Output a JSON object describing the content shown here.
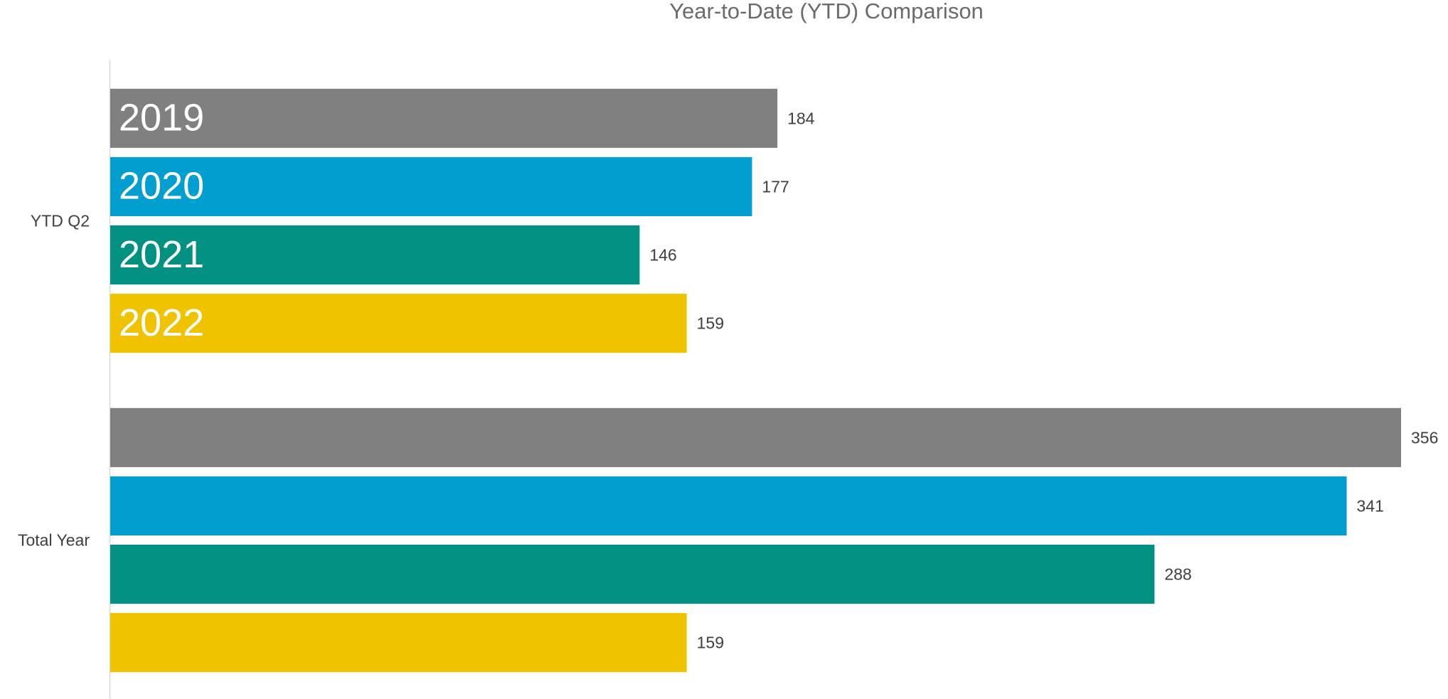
{
  "chart_data": {
    "type": "bar",
    "orientation": "horizontal",
    "title": "Year-to-Date (YTD) Comparison",
    "categories": [
      "YTD Q2",
      "Total Year"
    ],
    "series": [
      {
        "name": "2019",
        "color": "#808080",
        "values": [
          184,
          356
        ]
      },
      {
        "name": "2020",
        "color": "#009fcf",
        "values": [
          177,
          341
        ]
      },
      {
        "name": "2021",
        "color": "#009181",
        "values": [
          146,
          288
        ]
      },
      {
        "name": "2022",
        "color": "#f0c300",
        "values": [
          159,
          159
        ]
      }
    ],
    "xlim": [
      0,
      356
    ]
  }
}
